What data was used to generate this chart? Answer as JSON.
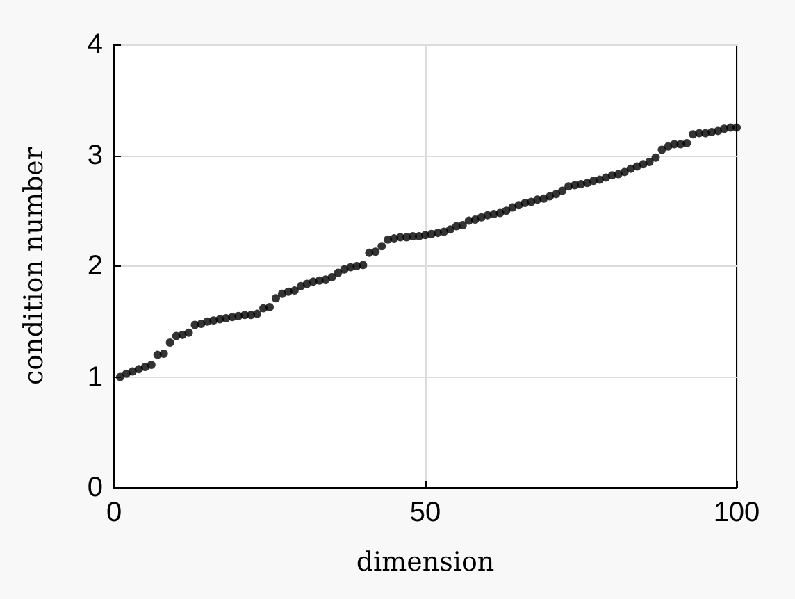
{
  "chart_data": {
    "type": "scatter",
    "xlabel": "dimension",
    "ylabel": "condition number",
    "x": [
      1,
      2,
      3,
      4,
      5,
      6,
      7,
      8,
      9,
      10,
      11,
      12,
      13,
      14,
      15,
      16,
      17,
      18,
      19,
      20,
      21,
      22,
      23,
      24,
      25,
      26,
      27,
      28,
      29,
      30,
      31,
      32,
      33,
      34,
      35,
      36,
      37,
      38,
      39,
      40,
      41,
      42,
      43,
      44,
      45,
      46,
      47,
      48,
      49,
      50,
      51,
      52,
      53,
      54,
      55,
      56,
      57,
      58,
      59,
      60,
      61,
      62,
      63,
      64,
      65,
      66,
      67,
      68,
      69,
      70,
      71,
      72,
      73,
      74,
      75,
      76,
      77,
      78,
      79,
      80,
      81,
      82,
      83,
      84,
      85,
      86,
      87,
      88,
      89,
      90,
      91,
      92,
      93,
      94,
      95,
      96,
      97,
      98,
      99,
      100
    ],
    "series": [
      {
        "color": "#000000",
        "values": [
          1.0,
          1.03,
          1.05,
          1.07,
          1.09,
          1.11,
          1.2,
          1.21,
          1.31,
          1.37,
          1.38,
          1.4,
          1.47,
          1.48,
          1.5,
          1.51,
          1.52,
          1.53,
          1.54,
          1.55,
          1.56,
          1.56,
          1.57,
          1.62,
          1.63,
          1.71,
          1.75,
          1.77,
          1.78,
          1.82,
          1.84,
          1.86,
          1.87,
          1.88,
          1.9,
          1.94,
          1.97,
          1.99,
          2.0,
          2.01,
          2.12,
          2.13,
          2.18,
          2.24,
          2.25,
          2.26,
          2.26,
          2.27,
          2.27,
          2.28,
          2.29,
          2.3,
          2.31,
          2.33,
          2.36,
          2.37,
          2.41,
          2.42,
          2.44,
          2.46,
          2.47,
          2.48,
          2.5,
          2.53,
          2.55,
          2.57,
          2.58,
          2.6,
          2.61,
          2.63,
          2.65,
          2.68,
          2.72,
          2.73,
          2.74,
          2.75,
          2.77,
          2.78,
          2.8,
          2.82,
          2.83,
          2.85,
          2.88,
          2.9,
          2.92,
          2.94,
          2.98,
          3.05,
          3.08,
          3.1,
          3.1,
          3.11,
          3.19,
          3.2,
          3.2,
          3.21,
          3.22,
          3.24,
          3.25,
          3.25
        ]
      }
    ],
    "xlim": [
      0,
      100
    ],
    "xticks": [
      0,
      50,
      100
    ],
    "ylim": [
      0,
      4
    ],
    "yticks": [
      0,
      1,
      2,
      3,
      4
    ],
    "grid": true,
    "marker": "circle"
  }
}
